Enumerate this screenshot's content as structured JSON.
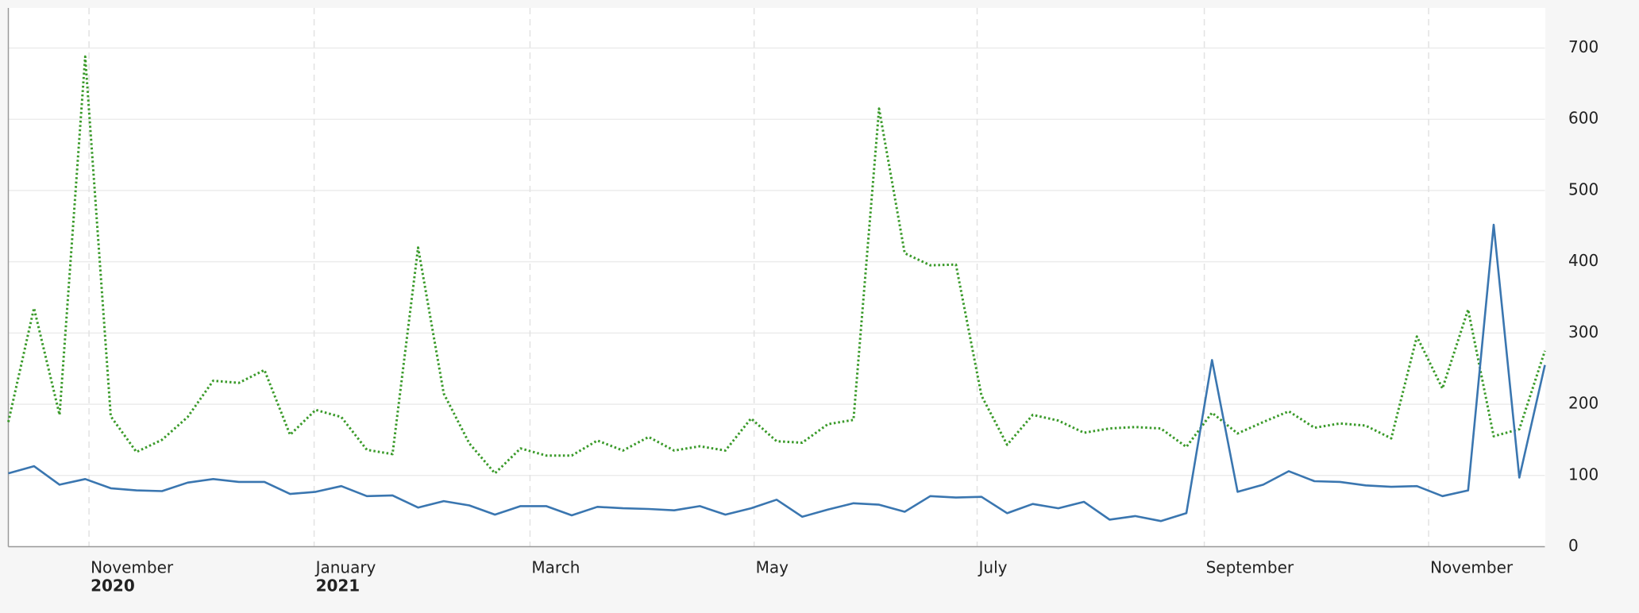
{
  "chart_data": {
    "type": "line",
    "xlim": [
      0,
      60
    ],
    "xticks": [
      {
        "value": 3.15,
        "label": "November",
        "year": "2020"
      },
      {
        "value": 11.94,
        "label": "January",
        "year": "2021"
      },
      {
        "value": 20.37,
        "label": "March"
      },
      {
        "value": 29.12,
        "label": "May"
      },
      {
        "value": 37.83,
        "label": "July"
      },
      {
        "value": 46.7,
        "label": "September"
      },
      {
        "value": 55.46,
        "label": "November"
      }
    ],
    "ylim": [
      0,
      760
    ],
    "yticks": [
      0,
      100,
      200,
      300,
      400,
      500,
      600,
      700
    ],
    "grid": true,
    "series": [
      {
        "color": "#3a9a2a",
        "dash": "dotted",
        "values": [
          175,
          335,
          185,
          688,
          183,
          133,
          150,
          182,
          233,
          230,
          248,
          157,
          192,
          182,
          136,
          130,
          420,
          215,
          145,
          103,
          138,
          128,
          128,
          149,
          135,
          154,
          135,
          141,
          135,
          180,
          148,
          146,
          172,
          178,
          615,
          412,
          395,
          396,
          212,
          143,
          185,
          177,
          160,
          166,
          168,
          166,
          140,
          188,
          159,
          175,
          190,
          167,
          173,
          170,
          152,
          295,
          222,
          333,
          155,
          165,
          275
        ]
      },
      {
        "color": "#3a76b0",
        "dash": "solid",
        "values": [
          103,
          113,
          87,
          95,
          82,
          79,
          78,
          90,
          95,
          91,
          91,
          74,
          77,
          85,
          71,
          72,
          55,
          64,
          58,
          45,
          57,
          57,
          44,
          56,
          54,
          53,
          51,
          57,
          45,
          54,
          66,
          42,
          52,
          61,
          59,
          49,
          71,
          69,
          70,
          47,
          60,
          54,
          63,
          38,
          43,
          36,
          47,
          262,
          77,
          87,
          106,
          92,
          91,
          86,
          84,
          85,
          71,
          79,
          452,
          97,
          255
        ]
      }
    ]
  }
}
